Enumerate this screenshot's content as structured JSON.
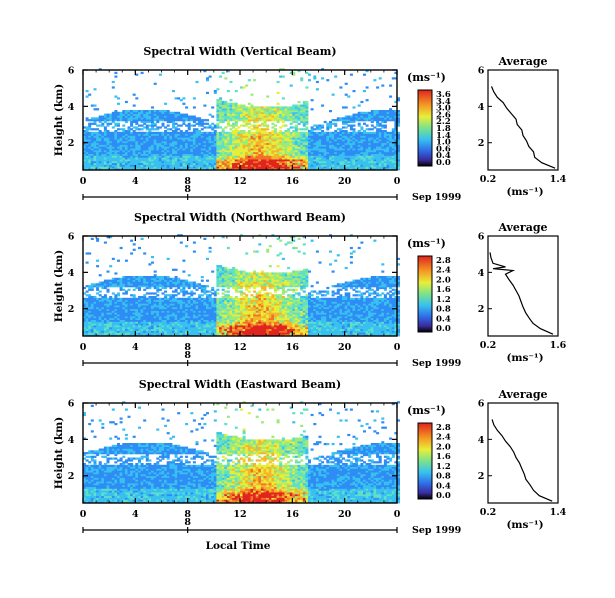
{
  "chart_data": [
    {
      "type": "heatmap",
      "title": "Spectral Width (Vertical Beam)",
      "ylabel": "Height (km)",
      "x_ticks": [
        "0",
        "4",
        "8",
        "12",
        "16",
        "20",
        "0"
      ],
      "y_ticks": [
        "2",
        "4",
        "6"
      ],
      "xlim": [
        0,
        24
      ],
      "ylim": [
        0.5,
        6
      ],
      "date_day": "8",
      "date_label": "Sep 1999",
      "colorbar": {
        "unit": "(ms⁻¹)",
        "ticks": [
          "3.6",
          "3.4",
          "3.0",
          "2.6",
          "2.2",
          "1.8",
          "1.4",
          "1.0",
          "0.6",
          "0.4",
          "0.0"
        ]
      },
      "average_profile": {
        "title": "Average",
        "xlabel": "(ms⁻¹)",
        "x_ticks": [
          "0.2",
          "1.4"
        ],
        "xlim": [
          0.2,
          1.4
        ],
        "y_ticks": [
          "2",
          "4",
          "6"
        ],
        "ylim": [
          0.5,
          6
        ],
        "heights": [
          0.6,
          0.9,
          1.2,
          1.5,
          1.8,
          2.1,
          2.4,
          2.7,
          3.0,
          3.3,
          3.6,
          3.9,
          4.2,
          4.5,
          4.8,
          5.1
        ],
        "values": [
          1.35,
          1.12,
          1.0,
          0.98,
          0.9,
          0.86,
          0.8,
          0.78,
          0.7,
          0.68,
          0.6,
          0.52,
          0.46,
          0.36,
          0.3,
          0.26
        ]
      }
    },
    {
      "type": "heatmap",
      "title": "Spectral Width (Northward Beam)",
      "ylabel": "Height (km)",
      "x_ticks": [
        "0",
        "4",
        "8",
        "12",
        "16",
        "20",
        "0"
      ],
      "y_ticks": [
        "2",
        "4",
        "6"
      ],
      "xlim": [
        0,
        24
      ],
      "ylim": [
        0.5,
        6
      ],
      "date_day": "8",
      "date_label": "Sep 1999",
      "colorbar": {
        "unit": "(ms⁻¹)",
        "ticks": [
          "2.8",
          "2.4",
          "2.0",
          "1.6",
          "1.2",
          "0.8",
          "0.4",
          "0.0"
        ]
      },
      "average_profile": {
        "title": "Average",
        "xlabel": "(ms⁻¹)",
        "x_ticks": [
          "0.2",
          "1.6"
        ],
        "xlim": [
          0.2,
          1.6
        ],
        "y_ticks": [
          "2",
          "4",
          "6"
        ],
        "ylim": [
          0.5,
          6
        ],
        "heights": [
          0.6,
          0.9,
          1.2,
          1.5,
          1.8,
          2.1,
          2.4,
          2.7,
          3.0,
          3.3,
          3.6,
          3.9,
          4.1,
          4.2,
          4.3,
          4.5,
          4.8,
          5.1
        ],
        "values": [
          1.5,
          1.25,
          1.1,
          1.02,
          0.95,
          0.9,
          0.86,
          0.82,
          0.76,
          0.7,
          0.62,
          0.55,
          0.7,
          0.3,
          0.55,
          0.3,
          0.26,
          0.24
        ]
      }
    },
    {
      "type": "heatmap",
      "title": "Spectral Width (Eastward Beam)",
      "ylabel": "Height (km)",
      "xlabel": "Local Time",
      "x_ticks": [
        "0",
        "4",
        "8",
        "12",
        "16",
        "20",
        "0"
      ],
      "y_ticks": [
        "2",
        "4",
        "6"
      ],
      "xlim": [
        0,
        24
      ],
      "ylim": [
        0.5,
        6
      ],
      "date_day": "8",
      "date_label": "Sep 1999",
      "colorbar": {
        "unit": "(ms⁻¹)",
        "ticks": [
          "2.8",
          "2.4",
          "2.0",
          "1.6",
          "1.2",
          "0.8",
          "0.4",
          "0.0"
        ]
      },
      "average_profile": {
        "title": "Average",
        "xlabel": "(ms⁻¹)",
        "x_ticks": [
          "0.2",
          "1.4"
        ],
        "xlim": [
          0.2,
          1.4
        ],
        "y_ticks": [
          "2",
          "4",
          "6"
        ],
        "ylim": [
          0.5,
          6
        ],
        "heights": [
          0.6,
          0.9,
          1.2,
          1.5,
          1.8,
          2.1,
          2.4,
          2.7,
          3.0,
          3.3,
          3.6,
          3.9,
          4.2,
          4.5,
          4.8,
          5.1
        ],
        "values": [
          1.3,
          1.08,
          0.98,
          0.92,
          0.85,
          0.82,
          0.78,
          0.74,
          0.68,
          0.64,
          0.58,
          0.5,
          0.44,
          0.36,
          0.3,
          0.27
        ]
      }
    }
  ]
}
